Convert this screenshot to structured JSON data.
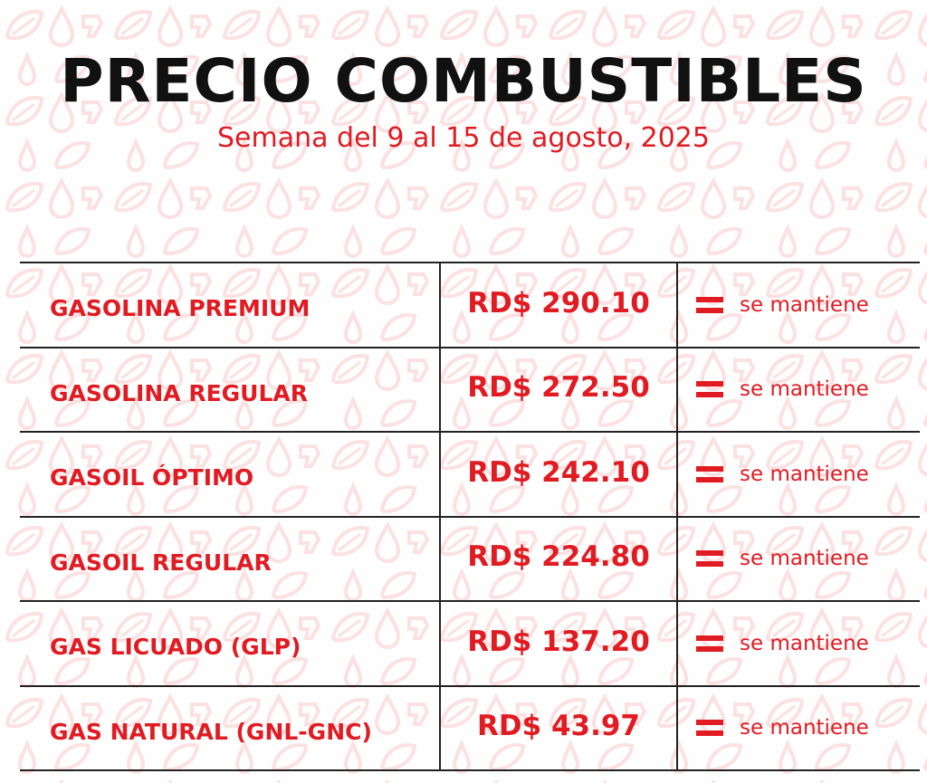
{
  "header": {
    "title": "PRECIO COMBUSTIBLES",
    "subtitle": "Semana del 9 al 15 de agosto, 2025"
  },
  "table": {
    "rows": [
      {
        "fuel": "GASOLINA PREMIUM",
        "price": "RD$ 290.10",
        "status": "se mantiene",
        "status_icon": "equals-icon"
      },
      {
        "fuel": "GASOLINA REGULAR",
        "price": "RD$ 272.50",
        "status": "se mantiene",
        "status_icon": "equals-icon"
      },
      {
        "fuel": "GASOIL ÓPTIMO",
        "price": "RD$ 242.10",
        "status": "se mantiene",
        "status_icon": "equals-icon"
      },
      {
        "fuel": "GASOIL REGULAR",
        "price": "RD$ 224.80",
        "status": "se mantiene",
        "status_icon": "equals-icon"
      },
      {
        "fuel": "GAS LICUADO (GLP)",
        "price": "RD$ 137.20",
        "status": "se mantiene",
        "status_icon": "equals-icon"
      },
      {
        "fuel": "GAS NATURAL (GNL-GNC)",
        "price": "RD$ 43.97",
        "status": "se mantiene",
        "status_icon": "equals-icon"
      }
    ]
  },
  "colors": {
    "accent": "#e11b22",
    "title": "#111111",
    "background": "#fffefe",
    "pattern": "#fbe3e3"
  }
}
